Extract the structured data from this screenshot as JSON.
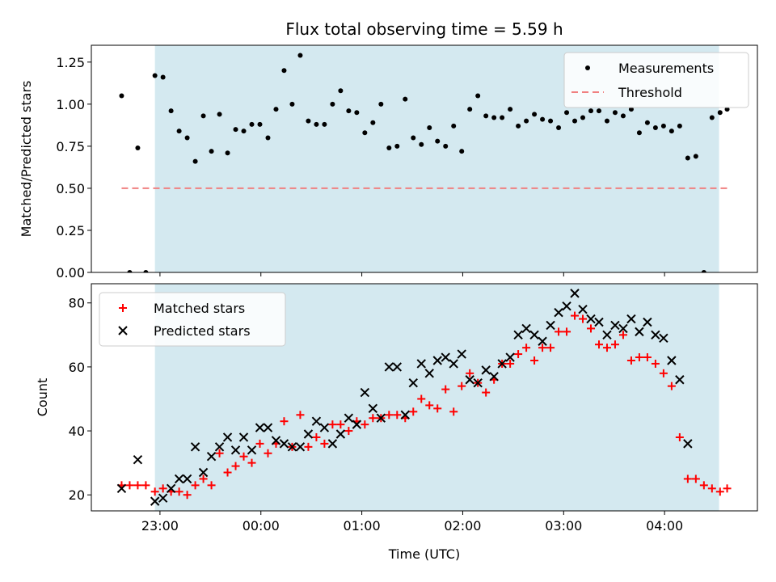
{
  "chart_data": {
    "type": "scatter",
    "title": "Flux total observing time = 5.59 h",
    "xlabel": "Time (UTC)",
    "x_tick_labels": [
      "23:00",
      "00:00",
      "01:00",
      "02:00",
      "03:00",
      "04:00"
    ],
    "x_tick_hours": [
      0,
      1,
      2,
      3,
      4,
      5
    ],
    "xlim_hours": [
      -0.68,
      5.92
    ],
    "shaded_region_hours": [
      -0.05,
      5.54
    ],
    "shade_color": "#d4e9f0",
    "top": {
      "ylabel": "Matched/Predicted stars",
      "ylim": [
        0,
        1.35
      ],
      "y_ticks": [
        0.0,
        0.25,
        0.5,
        0.75,
        1.0,
        1.25
      ],
      "y_tick_labels": [
        "0.00",
        "0.25",
        "0.50",
        "0.75",
        "1.00",
        "1.25"
      ],
      "threshold": {
        "name": "Threshold",
        "value": 0.5,
        "x_range_hours": [
          -0.38,
          5.62
        ],
        "color": "#f08080"
      },
      "measurements": {
        "name": "Measurements",
        "color": "#000000",
        "x": [
          -0.38,
          -0.3,
          -0.22,
          -0.14,
          -0.05,
          0.03,
          0.11,
          0.19,
          0.27,
          0.35,
          0.43,
          0.51,
          0.59,
          0.67,
          0.75,
          0.83,
          0.91,
          0.99,
          1.07,
          1.15,
          1.23,
          1.31,
          1.39,
          1.47,
          1.55,
          1.63,
          1.71,
          1.79,
          1.87,
          1.95,
          2.03,
          2.11,
          2.19,
          2.27,
          2.35,
          2.43,
          2.51,
          2.59,
          2.67,
          2.75,
          2.83,
          2.91,
          2.99,
          3.07,
          3.15,
          3.23,
          3.31,
          3.39,
          3.47,
          3.55,
          3.63,
          3.71,
          3.79,
          3.87,
          3.95,
          4.03,
          4.11,
          4.19,
          4.27,
          4.35,
          4.43,
          4.51,
          4.59,
          4.67,
          4.75,
          4.83,
          4.91,
          4.99,
          5.07,
          5.15,
          5.23,
          5.31,
          5.39,
          5.47,
          5.55,
          5.62
        ],
        "y": [
          1.05,
          0.0,
          0.74,
          0.0,
          1.17,
          1.16,
          0.96,
          0.84,
          0.8,
          0.66,
          0.93,
          0.72,
          0.94,
          0.71,
          0.85,
          0.84,
          0.88,
          0.88,
          0.8,
          0.97,
          1.2,
          1.0,
          1.29,
          0.9,
          0.88,
          0.88,
          1.0,
          1.08,
          0.96,
          0.95,
          0.83,
          0.89,
          1.0,
          0.74,
          0.75,
          1.03,
          0.8,
          0.76,
          0.86,
          0.78,
          0.75,
          0.87,
          0.72,
          0.97,
          1.05,
          0.93,
          0.92,
          0.92,
          0.97,
          0.87,
          0.9,
          0.94,
          0.91,
          0.9,
          0.86,
          0.95,
          0.9,
          0.92,
          0.96,
          0.96,
          0.9,
          0.95,
          0.93,
          0.97,
          0.83,
          0.89,
          0.86,
          0.87,
          0.84,
          0.87,
          0.68,
          0.69,
          0.0,
          0.92,
          0.95,
          0.97
        ]
      }
    },
    "bottom": {
      "ylabel": "Count",
      "ylim": [
        15,
        86
      ],
      "y_ticks": [
        20,
        40,
        60,
        80
      ],
      "y_tick_labels": [
        "20",
        "40",
        "60",
        "80"
      ],
      "series": [
        {
          "name": "Matched stars",
          "marker": "+",
          "color": "#ff0000",
          "x": [
            -0.38,
            -0.3,
            -0.22,
            -0.14,
            -0.05,
            0.03,
            0.11,
            0.19,
            0.27,
            0.35,
            0.43,
            0.51,
            0.59,
            0.67,
            0.75,
            0.83,
            0.91,
            0.99,
            1.07,
            1.15,
            1.23,
            1.31,
            1.39,
            1.47,
            1.55,
            1.63,
            1.71,
            1.79,
            1.87,
            1.95,
            2.03,
            2.11,
            2.19,
            2.27,
            2.35,
            2.43,
            2.51,
            2.59,
            2.67,
            2.75,
            2.83,
            2.91,
            2.99,
            3.07,
            3.15,
            3.23,
            3.31,
            3.39,
            3.47,
            3.55,
            3.63,
            3.71,
            3.79,
            3.87,
            3.95,
            4.03,
            4.11,
            4.19,
            4.27,
            4.35,
            4.43,
            4.51,
            4.59,
            4.67,
            4.75,
            4.83,
            4.91,
            4.99,
            5.07,
            5.15,
            5.23,
            5.31,
            5.39,
            5.47,
            5.55,
            5.62
          ],
          "y": [
            23,
            23,
            23,
            23,
            21,
            22,
            21,
            21,
            20,
            23,
            25,
            23,
            33,
            27,
            29,
            32,
            30,
            36,
            33,
            36,
            43,
            35,
            45,
            35,
            38,
            36,
            42,
            42,
            40,
            43,
            42,
            44,
            44,
            45,
            45,
            44,
            46,
            50,
            48,
            47,
            53,
            46,
            54,
            58,
            55,
            52,
            56,
            61,
            61,
            64,
            66,
            62,
            66,
            66,
            71,
            71,
            76,
            75,
            72,
            67,
            66,
            67,
            70,
            62,
            63,
            63,
            61,
            58,
            54,
            38,
            25,
            25,
            23,
            22,
            21,
            22
          ]
        },
        {
          "name": "Predicted stars",
          "marker": "x",
          "color": "#000000",
          "x": [
            -0.38,
            -0.22,
            -0.05,
            0.03,
            0.11,
            0.19,
            0.27,
            0.35,
            0.43,
            0.51,
            0.59,
            0.67,
            0.75,
            0.83,
            0.91,
            0.99,
            1.07,
            1.15,
            1.23,
            1.31,
            1.39,
            1.47,
            1.55,
            1.63,
            1.71,
            1.79,
            1.87,
            1.95,
            2.03,
            2.11,
            2.19,
            2.27,
            2.35,
            2.43,
            2.51,
            2.59,
            2.67,
            2.75,
            2.83,
            2.91,
            2.99,
            3.07,
            3.15,
            3.23,
            3.31,
            3.39,
            3.47,
            3.55,
            3.63,
            3.71,
            3.79,
            3.87,
            3.95,
            4.03,
            4.11,
            4.19,
            4.27,
            4.35,
            4.43,
            4.51,
            4.59,
            4.67,
            4.75,
            4.83,
            4.91,
            4.99,
            5.07,
            5.15,
            5.23
          ],
          "y": [
            22,
            31,
            18,
            19,
            22,
            25,
            25,
            35,
            27,
            32,
            35,
            38,
            34,
            38,
            34,
            41,
            41,
            37,
            36,
            35,
            35,
            39,
            43,
            41,
            36,
            39,
            44,
            42,
            52,
            47,
            44,
            60,
            60,
            45,
            55,
            61,
            58,
            62,
            63,
            61,
            64,
            56,
            55,
            59,
            57,
            61,
            63,
            70,
            72,
            70,
            68,
            73,
            77,
            79,
            83,
            78,
            75,
            74,
            70,
            73,
            72,
            75,
            71,
            74,
            70,
            69,
            62,
            56,
            36
          ]
        }
      ]
    }
  }
}
